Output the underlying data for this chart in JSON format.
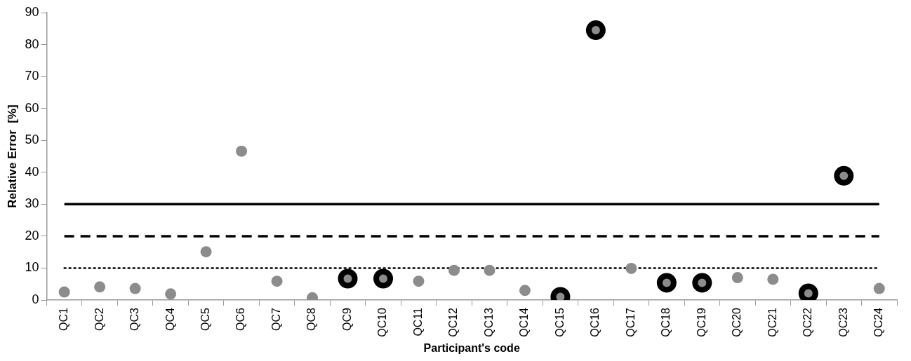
{
  "chart_data": {
    "type": "scatter",
    "xlabel": "Participant's code",
    "ylabel": "Relative Error  [%]",
    "categories": [
      "QC1",
      "QC2",
      "QC3",
      "QC4",
      "QC5",
      "QC6",
      "QC7",
      "QC8",
      "QC9",
      "QC10",
      "QC11",
      "QC12",
      "QC13",
      "QC14",
      "QC15",
      "QC16",
      "QC17",
      "QC18",
      "QC19",
      "QC20",
      "QC21",
      "QC22",
      "QC23",
      "QC24"
    ],
    "series": [
      {
        "color": "#8c8c8c",
        "values": [
          2.5,
          4.1,
          3.6,
          1.9,
          15.1,
          46.6,
          5.9,
          0.7,
          null,
          null,
          5.9,
          9.3,
          9.3,
          3.0,
          null,
          null,
          9.9,
          null,
          null,
          7.0,
          6.5,
          null,
          null,
          3.6
        ]
      },
      {
        "color": "#000000",
        "values": [
          null,
          null,
          null,
          null,
          null,
          null,
          null,
          null,
          6.7,
          6.7,
          null,
          null,
          null,
          null,
          1.0,
          84.5,
          null,
          5.4,
          5.4,
          null,
          null,
          2.1,
          38.9,
          null
        ]
      }
    ],
    "ylim": [
      0,
      90
    ],
    "yticks": [
      0,
      10,
      20,
      30,
      40,
      50,
      60,
      70,
      80,
      90
    ],
    "ref_lines": [
      {
        "axis": "y",
        "value": 30,
        "color": "#000000",
        "line_style": "solid"
      },
      {
        "axis": "y",
        "value": 20,
        "color": "#000000",
        "line_style": "dashed"
      },
      {
        "axis": "y",
        "value": 10,
        "color": "#000000",
        "line_style": "dotted"
      }
    ],
    "grid": false,
    "legend": false,
    "marker": "circle"
  }
}
